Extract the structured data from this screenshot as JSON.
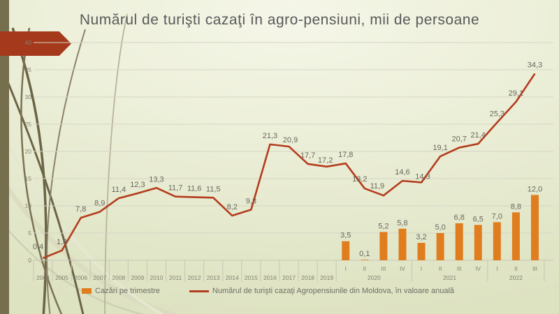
{
  "slide": {
    "title": "Numărul de turişti cazaţi în agro-pensiuni, mii de persoane"
  },
  "colors": {
    "accent_arrow": "#a5391c",
    "left_bar": "#756f4e",
    "bar": "#e07d1e",
    "line": "#b43c1e",
    "gridline": "#d5d5c5",
    "axis": "#c6c6b4"
  },
  "chart_data": {
    "type": "combo",
    "title": "Numărul de turişti cazaţi în agro-pensiuni, mii de persoane",
    "grid": true,
    "legend_position": "bottom",
    "ylim": [
      0,
      40
    ],
    "ytick_step": 5,
    "categories": [
      "2004",
      "2005",
      "2006",
      "2007",
      "2008",
      "2009",
      "2010",
      "2011",
      "2012",
      "2013",
      "2014",
      "2015",
      "2016",
      "2017",
      "2018",
      "2019",
      "I",
      "II",
      "III",
      "IV",
      "I",
      "II",
      "III",
      "IV",
      "I",
      "II",
      "III"
    ],
    "category_groups": [
      {
        "label": "2020",
        "start": 16,
        "end": 19
      },
      {
        "label": "2021",
        "start": 20,
        "end": 23
      },
      {
        "label": "2022",
        "start": 24,
        "end": 26
      }
    ],
    "series": [
      {
        "name": "Cazări pe trimestre",
        "type": "bar",
        "color": "#e07d1e",
        "values": [
          null,
          null,
          null,
          null,
          null,
          null,
          null,
          null,
          null,
          null,
          null,
          null,
          null,
          null,
          null,
          null,
          3.5,
          0.1,
          5.2,
          5.8,
          3.2,
          5.0,
          6.8,
          6.5,
          7.0,
          8.8,
          12.0
        ]
      },
      {
        "name": "Numărul de turişti cazaţi Agropensiunile din Moldova, în valoare anuală",
        "type": "line",
        "color": "#b43c1e",
        "values": [
          0.4,
          1.8,
          7.8,
          8.9,
          11.4,
          12.3,
          13.3,
          11.7,
          11.6,
          11.5,
          8.2,
          9.3,
          21.3,
          20.9,
          17.7,
          17.2,
          17.8,
          13.2,
          11.9,
          14.6,
          14.3,
          19.1,
          20.7,
          21.4,
          25.3,
          29.1,
          34.3
        ]
      }
    ]
  }
}
